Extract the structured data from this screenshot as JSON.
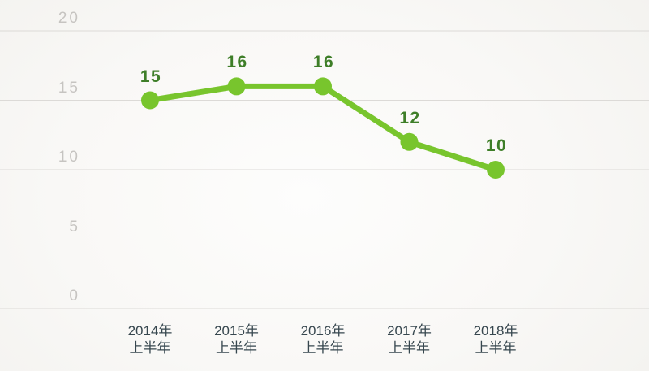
{
  "chart_data": {
    "type": "line",
    "categories": [
      {
        "line1": "2014年",
        "line2": "上半年"
      },
      {
        "line1": "2015年",
        "line2": "上半年"
      },
      {
        "line1": "2016年",
        "line2": "上半年"
      },
      {
        "line1": "2017年",
        "line2": "上半年"
      },
      {
        "line1": "2018年",
        "line2": "上半年"
      }
    ],
    "values": [
      15,
      16,
      16,
      12,
      10
    ],
    "data_labels": [
      "15",
      "16",
      "16",
      "12",
      "10"
    ],
    "yticks": [
      "0",
      "5",
      "10",
      "15",
      "20"
    ],
    "ylim": [
      0,
      20
    ],
    "title": "",
    "xlabel": "",
    "ylabel": "",
    "grid": "horizontal",
    "legend": "none",
    "colors": {
      "line": "#78c52d",
      "marker": "#78c52d",
      "data_label": "#3e7e28",
      "x_axis_text": "#37474f",
      "y_tick_text": "#c6c4c1",
      "gridline": "#dcdad7",
      "background_center": "#fdfdfc",
      "background_edge": "#f3f2ef"
    }
  }
}
